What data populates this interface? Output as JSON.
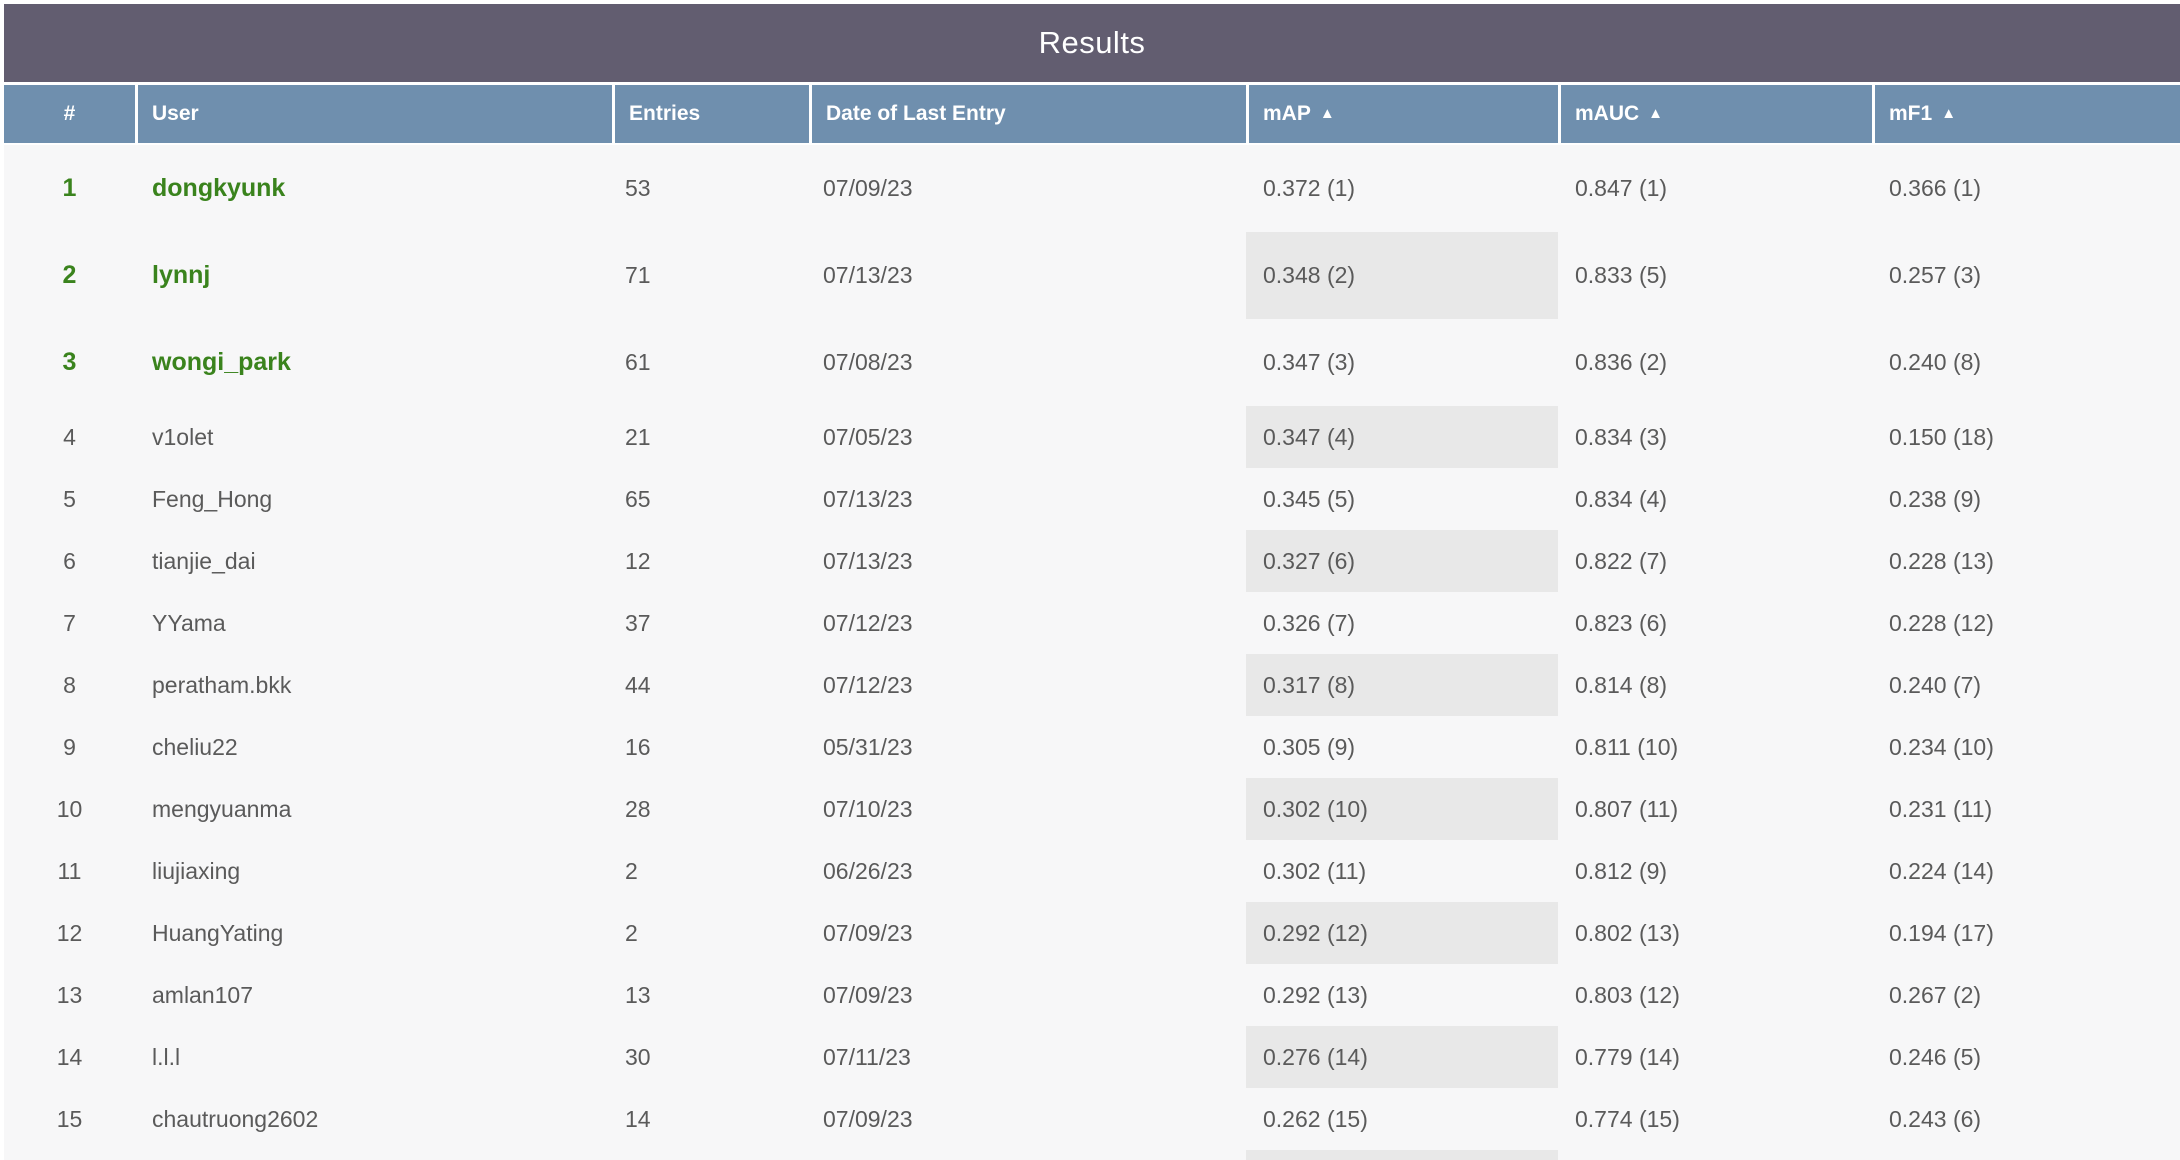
{
  "title": "Results",
  "icons": {
    "sort_ascending": "▲"
  },
  "colors": {
    "title_bar_bg": "#625d70",
    "header_bg": "#6f8fae",
    "body_bg": "#f7f7f8",
    "shaded_cell_bg": "#e8e8e8",
    "top_rank_green": "#3a831d",
    "body_text": "#5a5a5a",
    "header_text": "#ffffff"
  },
  "columns": [
    {
      "key": "rank",
      "label": "#",
      "sortable": false,
      "sort_icon": false
    },
    {
      "key": "user",
      "label": "User",
      "sortable": false,
      "sort_icon": false
    },
    {
      "key": "entries",
      "label": "Entries",
      "sortable": false,
      "sort_icon": false
    },
    {
      "key": "date",
      "label": "Date of Last Entry",
      "sortable": false,
      "sort_icon": false
    },
    {
      "key": "map",
      "label": "mAP",
      "sortable": true,
      "sort_icon": true
    },
    {
      "key": "mauc",
      "label": "mAUC",
      "sortable": true,
      "sort_icon": true
    },
    {
      "key": "mf1",
      "label": "mF1",
      "sortable": true,
      "sort_icon": true
    }
  ],
  "rows": [
    {
      "rank": "1",
      "user": "dongkyunk",
      "entries": "53",
      "date": "07/09/23",
      "map": "0.372 (1)",
      "mauc": "0.847 (1)",
      "mf1": "0.366 (1)",
      "top": true,
      "map_shaded": false
    },
    {
      "rank": "2",
      "user": "lynnj",
      "entries": "71",
      "date": "07/13/23",
      "map": "0.348 (2)",
      "mauc": "0.833 (5)",
      "mf1": "0.257 (3)",
      "top": true,
      "map_shaded": true
    },
    {
      "rank": "3",
      "user": "wongi_park",
      "entries": "61",
      "date": "07/08/23",
      "map": "0.347 (3)",
      "mauc": "0.836 (2)",
      "mf1": "0.240 (8)",
      "top": true,
      "map_shaded": false
    },
    {
      "rank": "4",
      "user": "v1olet",
      "entries": "21",
      "date": "07/05/23",
      "map": "0.347 (4)",
      "mauc": "0.834 (3)",
      "mf1": "0.150 (18)",
      "top": false,
      "map_shaded": true
    },
    {
      "rank": "5",
      "user": "Feng_Hong",
      "entries": "65",
      "date": "07/13/23",
      "map": "0.345 (5)",
      "mauc": "0.834 (4)",
      "mf1": "0.238 (9)",
      "top": false,
      "map_shaded": false
    },
    {
      "rank": "6",
      "user": "tianjie_dai",
      "entries": "12",
      "date": "07/13/23",
      "map": "0.327 (6)",
      "mauc": "0.822 (7)",
      "mf1": "0.228 (13)",
      "top": false,
      "map_shaded": true
    },
    {
      "rank": "7",
      "user": "YYama",
      "entries": "37",
      "date": "07/12/23",
      "map": "0.326 (7)",
      "mauc": "0.823 (6)",
      "mf1": "0.228 (12)",
      "top": false,
      "map_shaded": false
    },
    {
      "rank": "8",
      "user": "peratham.bkk",
      "entries": "44",
      "date": "07/12/23",
      "map": "0.317 (8)",
      "mauc": "0.814 (8)",
      "mf1": "0.240 (7)",
      "top": false,
      "map_shaded": true
    },
    {
      "rank": "9",
      "user": "cheliu22",
      "entries": "16",
      "date": "05/31/23",
      "map": "0.305 (9)",
      "mauc": "0.811 (10)",
      "mf1": "0.234 (10)",
      "top": false,
      "map_shaded": false
    },
    {
      "rank": "10",
      "user": "mengyuanma",
      "entries": "28",
      "date": "07/10/23",
      "map": "0.302 (10)",
      "mauc": "0.807 (11)",
      "mf1": "0.231 (11)",
      "top": false,
      "map_shaded": true
    },
    {
      "rank": "11",
      "user": "liujiaxing",
      "entries": "2",
      "date": "06/26/23",
      "map": "0.302 (11)",
      "mauc": "0.812 (9)",
      "mf1": "0.224 (14)",
      "top": false,
      "map_shaded": false
    },
    {
      "rank": "12",
      "user": "HuangYating",
      "entries": "2",
      "date": "07/09/23",
      "map": "0.292 (12)",
      "mauc": "0.802 (13)",
      "mf1": "0.194 (17)",
      "top": false,
      "map_shaded": true
    },
    {
      "rank": "13",
      "user": "amlan107",
      "entries": "13",
      "date": "07/09/23",
      "map": "0.292 (13)",
      "mauc": "0.803 (12)",
      "mf1": "0.267 (2)",
      "top": false,
      "map_shaded": false
    },
    {
      "rank": "14",
      "user": "l.l.l",
      "entries": "30",
      "date": "07/11/23",
      "map": "0.276 (14)",
      "mauc": "0.779 (14)",
      "mf1": "0.246 (5)",
      "top": false,
      "map_shaded": true
    },
    {
      "rank": "15",
      "user": "chautruong2602",
      "entries": "14",
      "date": "07/09/23",
      "map": "0.262 (15)",
      "mauc": "0.774 (15)",
      "mf1": "0.243 (6)",
      "top": false,
      "map_shaded": false
    }
  ],
  "partial_row": {
    "visible": true,
    "map_shaded": true
  }
}
